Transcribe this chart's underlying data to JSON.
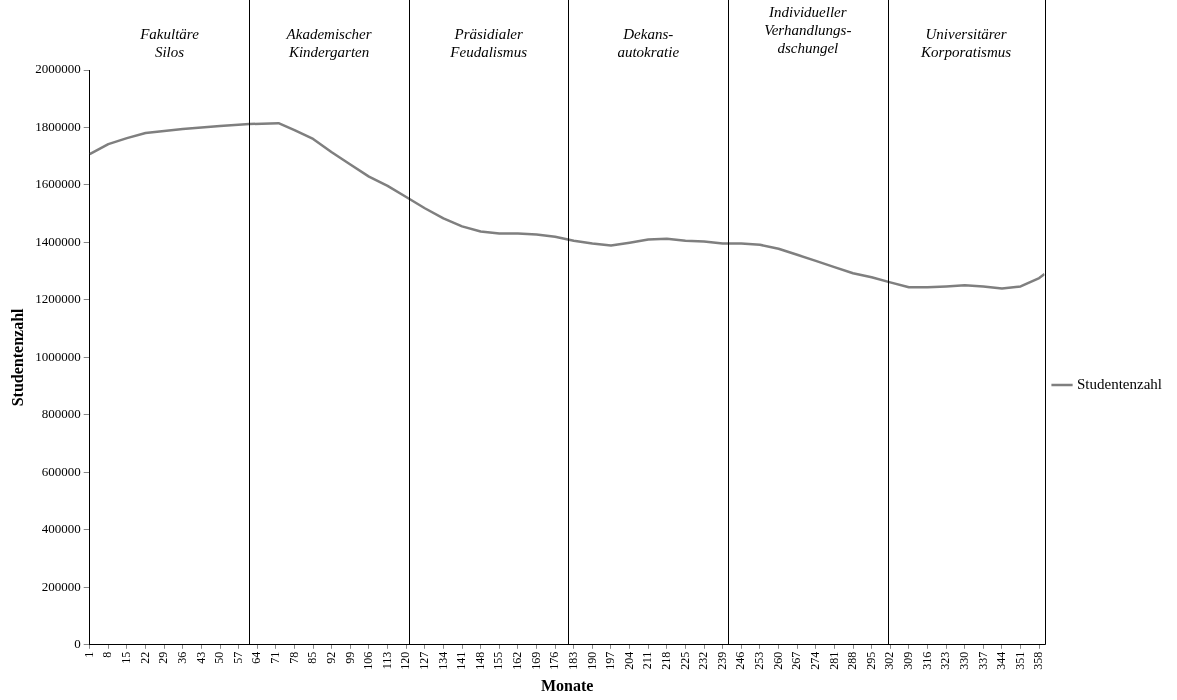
{
  "chart_data": {
    "type": "line",
    "xlabel": "Monate",
    "ylabel": "Studentenzahl",
    "legend": "right",
    "grid": false,
    "marker": "none",
    "line_style": "solid",
    "xlim": [
      1,
      360
    ],
    "ylim": [
      0,
      2000000
    ],
    "xticks": [
      1,
      8,
      15,
      22,
      29,
      36,
      43,
      50,
      57,
      64,
      71,
      78,
      85,
      92,
      99,
      106,
      113,
      120,
      127,
      134,
      141,
      148,
      155,
      162,
      169,
      176,
      183,
      190,
      197,
      204,
      211,
      218,
      225,
      232,
      239,
      246,
      253,
      260,
      267,
      274,
      281,
      288,
      295,
      302,
      309,
      316,
      323,
      330,
      337,
      344,
      351,
      358
    ],
    "yticks": [
      0,
      200000,
      400000,
      600000,
      800000,
      1000000,
      1200000,
      1400000,
      1600000,
      1800000,
      2000000
    ],
    "ref_lines": [
      {
        "axis": "x",
        "value": 61,
        "color": "#000000"
      },
      {
        "axis": "x",
        "value": 121,
        "color": "#000000"
      },
      {
        "axis": "x",
        "value": 181,
        "color": "#000000"
      },
      {
        "axis": "x",
        "value": 241,
        "color": "#000000"
      },
      {
        "axis": "x",
        "value": 301,
        "color": "#000000"
      }
    ],
    "annotations": [
      "Fakultäre\nSilos",
      "Akademischer\nKindergarten",
      "Präsidialer\nFeudalismus",
      "Dekans-\nautokratie",
      "Individueller\nVerhandlungs-\ndschungel",
      "Universitärer\nKorporatismus"
    ],
    "series": [
      {
        "name": "Studentenzahl",
        "color": "#7f7f7f",
        "x": [
          1,
          8,
          15,
          22,
          36,
          50,
          61,
          72,
          78,
          85,
          92,
          99,
          106,
          113,
          120,
          127,
          134,
          141,
          148,
          155,
          162,
          169,
          176,
          183,
          190,
          197,
          204,
          211,
          218,
          225,
          232,
          239,
          246,
          253,
          260,
          267,
          274,
          281,
          288,
          295,
          302,
          309,
          316,
          323,
          330,
          337,
          344,
          351,
          358,
          360
        ],
        "values": [
          1707000,
          1742000,
          1763000,
          1781000,
          1795000,
          1805000,
          1812000,
          1815000,
          1791000,
          1760000,
          1714000,
          1671000,
          1629000,
          1597000,
          1558000,
          1519000,
          1484000,
          1456000,
          1438000,
          1431000,
          1431000,
          1428000,
          1420000,
          1406000,
          1396000,
          1389000,
          1399000,
          1410000,
          1413000,
          1406000,
          1403000,
          1396000,
          1396000,
          1392000,
          1378000,
          1357000,
          1336000,
          1314000,
          1293000,
          1279000,
          1261000,
          1244000,
          1244000,
          1247000,
          1251000,
          1247000,
          1240000,
          1247000,
          1276000,
          1290000
        ]
      }
    ]
  }
}
